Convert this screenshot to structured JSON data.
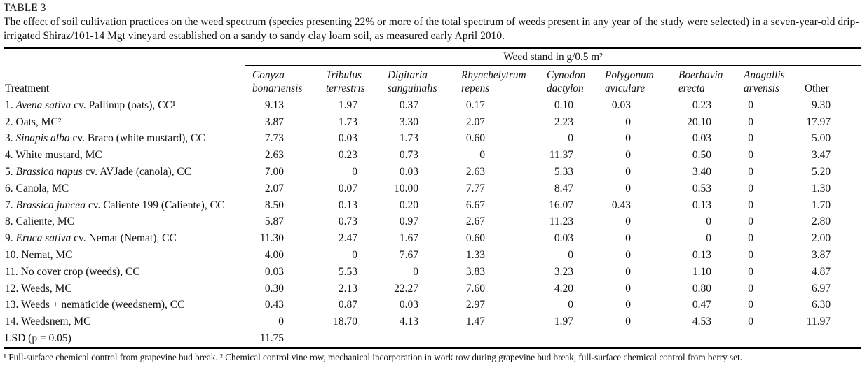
{
  "table_number": "TABLE 3",
  "caption": "The effect of soil cultivation practices on the weed spectrum (species presenting 22% or more of the total spectrum of weeds present in any year of the study were selected) in a seven-year-old drip-irrigated Shiraz/101-14 Mgt vineyard established on a sandy to sandy clay loam soil, as measured early April 2010.",
  "span_header": "Weed stand in g/0.5 m²",
  "treatment_header": "Treatment",
  "species_columns": [
    {
      "line1": "Conyza",
      "line2": "bonariensis",
      "italic": true
    },
    {
      "line1": "Tribulus",
      "line2": "terrestris",
      "italic": true
    },
    {
      "line1": "Digitaria",
      "line2": "sanguinalis",
      "italic": true
    },
    {
      "line1": "Rhynchelytrum",
      "line2": "repens",
      "italic": true
    },
    {
      "line1": "Cynodon",
      "line2": "dactylon",
      "italic": true
    },
    {
      "line1": "Polygonum",
      "line2": "aviculare",
      "italic": true
    },
    {
      "line1": "Boerhavia",
      "line2": "erecta",
      "italic": true
    },
    {
      "line1": "Anagallis",
      "line2": "arvensis",
      "italic": true
    },
    {
      "line1": "",
      "line2": "Other",
      "italic": false
    }
  ],
  "rows": [
    {
      "treatment": {
        "pre": "1. ",
        "italic": "Avena sativa",
        "post": " cv. Pallinup (oats), CC¹"
      },
      "values": [
        "9.13",
        "1.97",
        "0.37",
        "0.17",
        "0.10",
        "0.03",
        "0.23",
        "0",
        "9.30"
      ]
    },
    {
      "treatment": {
        "pre": "2. Oats, MC²",
        "italic": "",
        "post": ""
      },
      "values": [
        "3.87",
        "1.73",
        "3.30",
        "2.07",
        "2.23",
        "0",
        "20.10",
        "0",
        "17.97"
      ]
    },
    {
      "treatment": {
        "pre": "3. ",
        "italic": "Sinapis alba",
        "post": " cv. Braco (white mustard), CC"
      },
      "values": [
        "7.73",
        "0.03",
        "1.73",
        "0.60",
        "0",
        "0",
        "0.03",
        "0",
        "5.00"
      ]
    },
    {
      "treatment": {
        "pre": "4. White mustard, MC",
        "italic": "",
        "post": ""
      },
      "values": [
        "2.63",
        "0.23",
        "0.73",
        "0",
        "11.37",
        "0",
        "0.50",
        "0",
        "3.47"
      ]
    },
    {
      "treatment": {
        "pre": "5. ",
        "italic": "Brassica napus",
        "post": " cv. AVJade (canola), CC"
      },
      "values": [
        "7.00",
        "0",
        "0.03",
        "2.63",
        "5.33",
        "0",
        "3.40",
        "0",
        "5.20"
      ]
    },
    {
      "treatment": {
        "pre": "6. Canola, MC",
        "italic": "",
        "post": ""
      },
      "values": [
        "2.07",
        "0.07",
        "10.00",
        "7.77",
        "8.47",
        "0",
        "0.53",
        "0",
        "1.30"
      ]
    },
    {
      "treatment": {
        "pre": "7. ",
        "italic": "Brassica juncea",
        "post": " cv. Caliente 199 (Caliente), CC"
      },
      "values": [
        "8.50",
        "0.13",
        "0.20",
        "6.67",
        "16.07",
        "0.43",
        "0.13",
        "0",
        "1.70"
      ]
    },
    {
      "treatment": {
        "pre": "8. Caliente, MC",
        "italic": "",
        "post": ""
      },
      "values": [
        "5.87",
        "0.73",
        "0.97",
        "2.67",
        "11.23",
        "0",
        "0",
        "0",
        "2.80"
      ]
    },
    {
      "treatment": {
        "pre": "9. ",
        "italic": "Eruca sativa",
        "post": " cv. Nemat (Nemat), CC"
      },
      "values": [
        "11.30",
        "2.47",
        "1.67",
        "0.60",
        "0.03",
        "0",
        "0",
        "0",
        "2.00"
      ]
    },
    {
      "treatment": {
        "pre": "10. Nemat, MC",
        "italic": "",
        "post": ""
      },
      "values": [
        "4.00",
        "0",
        "7.67",
        "1.33",
        "0",
        "0",
        "0.13",
        "0",
        "3.87"
      ]
    },
    {
      "treatment": {
        "pre": "11. No cover crop (weeds), CC",
        "italic": "",
        "post": ""
      },
      "values": [
        "0.03",
        "5.53",
        "0",
        "3.83",
        "3.23",
        "0",
        "1.10",
        "0",
        "4.87"
      ]
    },
    {
      "treatment": {
        "pre": "12. Weeds, MC",
        "italic": "",
        "post": ""
      },
      "values": [
        "0.30",
        "2.13",
        "22.27",
        "7.60",
        "4.20",
        "0",
        "0.80",
        "0",
        "6.97"
      ]
    },
    {
      "treatment": {
        "pre": "13. Weeds + nematicide (weedsnem), CC",
        "italic": "",
        "post": ""
      },
      "values": [
        "0.43",
        "0.87",
        "0.03",
        "2.97",
        "0",
        "0",
        "0.47",
        "0",
        "6.30"
      ]
    },
    {
      "treatment": {
        "pre": "14. Weedsnem, MC",
        "italic": "",
        "post": ""
      },
      "values": [
        "0",
        "18.70",
        "4.13",
        "1.47",
        "1.97",
        "0",
        "4.53",
        "0",
        "11.97"
      ]
    },
    {
      "treatment": {
        "pre": "LSD (p = 0.05)",
        "italic": "",
        "post": ""
      },
      "values": [
        "11.75",
        "",
        "",
        "",
        "",
        "",
        "",
        "",
        ""
      ]
    }
  ],
  "footnote": "¹ Full-surface chemical control from grapevine bud break. ² Chemical control vine row, mechanical incorporation in work row during grapevine bud break, full-surface chemical control from berry set."
}
